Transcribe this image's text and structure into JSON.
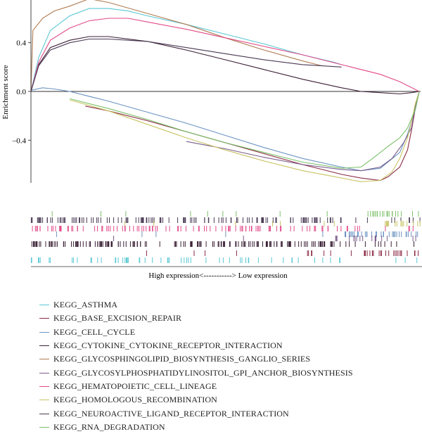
{
  "chart_data": {
    "type": "line",
    "ylabel": "Enrichment score",
    "xlabel": "High expression<-----------> Low expression",
    "ylim": [
      -0.75,
      0.75
    ],
    "yticks": [
      0.4,
      0.0,
      -0.4
    ],
    "ytick_labels": [
      "0.4",
      "0.0",
      "–0.4"
    ],
    "x_range": [
      0,
      1
    ],
    "series": [
      {
        "name": "KEGG_ASTHMA",
        "color": "#5bc8d4",
        "x": [
          0,
          0.02,
          0.05,
          0.1,
          0.15,
          0.2,
          0.25,
          0.3,
          0.4,
          0.5,
          0.6,
          0.7,
          0.78,
          0.8
        ],
        "y": [
          0.0,
          0.28,
          0.5,
          0.62,
          0.68,
          0.68,
          0.66,
          0.62,
          0.55,
          0.47,
          0.39,
          0.3,
          0.24,
          0.22
        ]
      },
      {
        "name": "KEGG_BASE_EXCISION_REPAIR",
        "color": "#8b2b45",
        "x": [
          0.14,
          0.2,
          0.3,
          0.4,
          0.5,
          0.6,
          0.7,
          0.75,
          0.8,
          0.85,
          0.9,
          0.92,
          0.95,
          0.97,
          0.98,
          0.99,
          1.0
        ],
        "y": [
          -0.12,
          -0.16,
          -0.24,
          -0.33,
          -0.42,
          -0.51,
          -0.6,
          -0.64,
          -0.68,
          -0.71,
          -0.73,
          -0.7,
          -0.62,
          -0.48,
          -0.32,
          -0.14,
          0.0
        ]
      },
      {
        "name": "KEGG_CELL_CYCLE",
        "color": "#6b93c2",
        "x": [
          0,
          0.03,
          0.06,
          0.1,
          0.2,
          0.3,
          0.4,
          0.5,
          0.6,
          0.7,
          0.8,
          0.85,
          0.9,
          0.95,
          0.97,
          0.99,
          1.0
        ],
        "y": [
          0.01,
          0.03,
          0.02,
          0.0,
          -0.08,
          -0.17,
          -0.26,
          -0.36,
          -0.46,
          -0.55,
          -0.62,
          -0.65,
          -0.63,
          -0.5,
          -0.35,
          -0.15,
          0.0
        ]
      },
      {
        "name": "KEGG_CYTOKINE_CYTOKINE_RECEPTOR_INTERACTION",
        "color": "#3b2035",
        "x": [
          0,
          0.02,
          0.05,
          0.1,
          0.15,
          0.2,
          0.3,
          0.4,
          0.5,
          0.6,
          0.7,
          0.8,
          0.85,
          0.9,
          0.95,
          0.98,
          1.0
        ],
        "y": [
          0.0,
          0.22,
          0.36,
          0.42,
          0.45,
          0.45,
          0.41,
          0.34,
          0.26,
          0.18,
          0.1,
          0.03,
          0.0,
          -0.01,
          -0.02,
          -0.01,
          0.0
        ]
      },
      {
        "name": "KEGG_GLYCOSPHINGOLIPID_BIOSYNTHESIS_GANGLIO_SERIES",
        "color": "#b07c52",
        "x": [
          0,
          0.005,
          0.03,
          0.06,
          0.1,
          0.15,
          0.2,
          0.3,
          0.4,
          0.5,
          0.6,
          0.7,
          0.75
        ],
        "y": [
          0.0,
          0.5,
          0.6,
          0.66,
          0.7,
          0.76,
          0.73,
          0.64,
          0.55,
          0.44,
          0.34,
          0.25,
          0.21
        ]
      },
      {
        "name": "KEGG_GLYCOSYLPHOSPHATIDYLINOSITOL_GPI_ANCHOR_BIOSYNTHESIS",
        "color": "#7a5c8c",
        "x": [
          0.4,
          0.45,
          0.5,
          0.6,
          0.7,
          0.8,
          0.85,
          0.9,
          0.93,
          0.96,
          0.98,
          0.99,
          1.0
        ],
        "y": [
          -0.41,
          -0.44,
          -0.47,
          -0.54,
          -0.6,
          -0.64,
          -0.65,
          -0.62,
          -0.55,
          -0.42,
          -0.3,
          -0.12,
          0.0
        ]
      },
      {
        "name": "KEGG_HEMATOPOIETIC_CELL_LINEAGE",
        "color": "#e24a88",
        "x": [
          0,
          0.02,
          0.05,
          0.1,
          0.15,
          0.2,
          0.25,
          0.3,
          0.4,
          0.5,
          0.6,
          0.7,
          0.8,
          0.9,
          0.95,
          1.0
        ],
        "y": [
          0.0,
          0.24,
          0.42,
          0.52,
          0.58,
          0.6,
          0.6,
          0.57,
          0.51,
          0.44,
          0.37,
          0.3,
          0.22,
          0.14,
          0.08,
          0.0
        ]
      },
      {
        "name": "KEGG_HOMOLOGOUS_RECOMBINATION",
        "color": "#c9c466",
        "x": [
          0.1,
          0.2,
          0.3,
          0.4,
          0.5,
          0.6,
          0.7,
          0.8,
          0.85,
          0.9,
          0.93,
          0.95,
          0.97,
          0.98,
          0.99,
          1.0
        ],
        "y": [
          -0.07,
          -0.16,
          -0.27,
          -0.38,
          -0.48,
          -0.57,
          -0.65,
          -0.71,
          -0.74,
          -0.73,
          -0.66,
          -0.55,
          -0.38,
          -0.25,
          -0.1,
          0.0
        ]
      },
      {
        "name": "KEGG_NEUROACTIVE_LIGAND_RECEPTOR_INTERACTION",
        "color": "#4a3a54",
        "x": [
          0,
          0.02,
          0.05,
          0.1,
          0.15,
          0.2,
          0.3,
          0.4,
          0.5,
          0.6,
          0.7,
          0.75,
          0.8
        ],
        "y": [
          0.0,
          0.21,
          0.34,
          0.4,
          0.43,
          0.43,
          0.41,
          0.36,
          0.31,
          0.26,
          0.22,
          0.21,
          0.2
        ]
      },
      {
        "name": "KEGG_RNA_DEGRADATION",
        "color": "#7cc06a",
        "x": [
          0.1,
          0.2,
          0.3,
          0.4,
          0.5,
          0.6,
          0.7,
          0.8,
          0.85,
          0.88,
          0.92,
          0.95,
          0.97,
          0.99,
          1.0
        ],
        "y": [
          -0.06,
          -0.14,
          -0.23,
          -0.33,
          -0.42,
          -0.5,
          -0.58,
          -0.63,
          -0.62,
          -0.55,
          -0.45,
          -0.38,
          -0.3,
          -0.15,
          0.0
        ]
      }
    ],
    "legend_placement": "bottom-left",
    "grid": false
  }
}
